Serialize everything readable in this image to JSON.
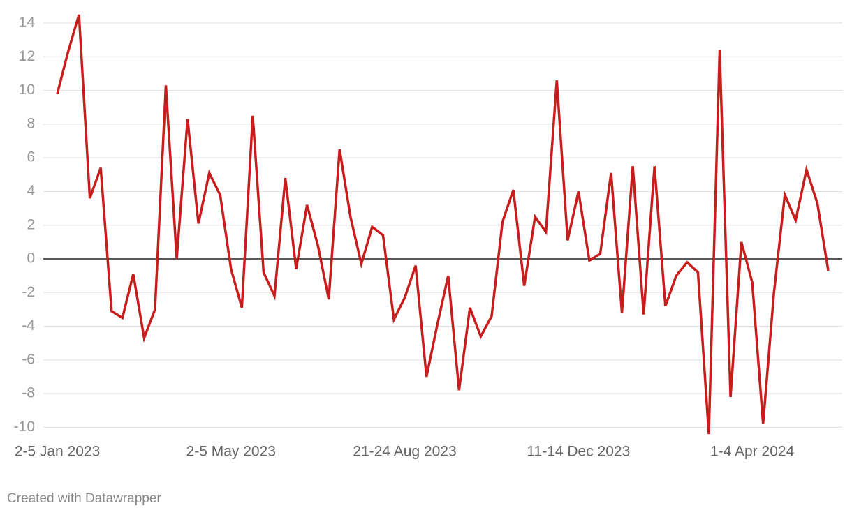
{
  "chart_data": {
    "type": "line",
    "categories": [
      "2-5 Jan 2023",
      null,
      null,
      null,
      null,
      null,
      null,
      null,
      null,
      null,
      null,
      null,
      null,
      null,
      null,
      null,
      "2-5 May 2023",
      null,
      null,
      null,
      null,
      null,
      null,
      null,
      null,
      null,
      null,
      null,
      null,
      null,
      null,
      null,
      "21-24 Aug 2023",
      null,
      null,
      null,
      null,
      null,
      null,
      null,
      null,
      null,
      null,
      null,
      null,
      null,
      null,
      null,
      "11-14 Dec 2023",
      null,
      null,
      null,
      null,
      null,
      null,
      null,
      null,
      null,
      null,
      null,
      null,
      null,
      null,
      null,
      "1-4 Apr 2024",
      null,
      null,
      null,
      null,
      null,
      null,
      null
    ],
    "values": [
      9.8,
      12.3,
      14.5,
      3.6,
      5.4,
      -3.1,
      -3.5,
      -0.9,
      -4.7,
      -3.0,
      10.3,
      0.0,
      8.3,
      2.1,
      5.1,
      3.8,
      -0.6,
      -2.9,
      8.5,
      -0.8,
      -2.2,
      4.8,
      -0.6,
      3.2,
      0.8,
      -2.4,
      6.5,
      2.5,
      -0.3,
      1.9,
      1.4,
      -3.6,
      -2.3,
      -0.4,
      -7.0,
      -3.9,
      -1.0,
      -7.8,
      -2.9,
      -4.6,
      -3.4,
      2.2,
      4.1,
      -1.6,
      2.5,
      1.6,
      10.6,
      1.1,
      4.0,
      -0.1,
      0.3,
      5.1,
      -3.2,
      5.5,
      -3.3,
      5.5,
      -2.8,
      -1.0,
      -0.2,
      -0.8,
      -10.4,
      12.4,
      -8.2,
      1.0,
      -1.4,
      -9.8,
      -2.0,
      3.8,
      2.3,
      5.3,
      3.3,
      -0.7
    ],
    "color": "#c71e1d",
    "ylim": [
      -10.5,
      14.75
    ],
    "yticks": [
      -10,
      -8,
      -6,
      -4,
      -2,
      0,
      2,
      4,
      6,
      8,
      10,
      12,
      14
    ],
    "grid": true,
    "footer": "Created with Datawrapper"
  }
}
